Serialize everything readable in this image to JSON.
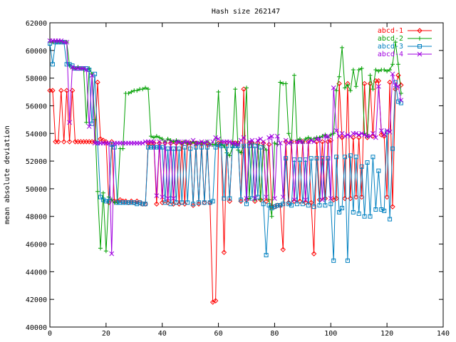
{
  "chart_data": {
    "type": "line",
    "title": "Hash size 262147",
    "xlabel": "",
    "ylabel": "mean absolute deviation",
    "xlim": [
      0,
      140
    ],
    "ylim": [
      40000,
      62000
    ],
    "xticks": [
      0,
      20,
      40,
      60,
      80,
      100,
      120,
      140
    ],
    "yticks": [
      40000,
      42000,
      44000,
      46000,
      48000,
      50000,
      52000,
      54000,
      56000,
      58000,
      60000,
      62000
    ],
    "xtick_labels": [
      "0",
      "20",
      "40",
      "60",
      "80",
      "100",
      "120",
      "140"
    ],
    "ytick_labels": [
      "40000",
      "42000",
      "44000",
      "46000",
      "48000",
      "50000",
      "52000",
      "54000",
      "56000",
      "58000",
      "60000",
      "62000"
    ],
    "grid": false,
    "legend_position": "top-right",
    "series": [
      {
        "name": "abcd-1",
        "color": "#ff0000",
        "marker": "diamond",
        "x": [
          0,
          1,
          2,
          3,
          4,
          5,
          6,
          7,
          8,
          9,
          10,
          11,
          12,
          13,
          14,
          15,
          16,
          17,
          18,
          19,
          20,
          21,
          22,
          23,
          24,
          25,
          26,
          27,
          28,
          29,
          30,
          31,
          32,
          33,
          34,
          35,
          36,
          37,
          38,
          39,
          40,
          41,
          42,
          43,
          44,
          45,
          46,
          47,
          48,
          49,
          50,
          51,
          52,
          53,
          54,
          55,
          56,
          57,
          58,
          59,
          60,
          61,
          62,
          63,
          64,
          65,
          66,
          67,
          68,
          69,
          70,
          71,
          72,
          73,
          74,
          75,
          76,
          77,
          78,
          79,
          80,
          81,
          82,
          83,
          84,
          85,
          86,
          87,
          88,
          89,
          90,
          91,
          92,
          93,
          94,
          95,
          96,
          97,
          98,
          99,
          100,
          101,
          102,
          103,
          104,
          105,
          106,
          107,
          108,
          109,
          110,
          111,
          112,
          113,
          114,
          115,
          116,
          117,
          118,
          119,
          120,
          121,
          122,
          123,
          124,
          125
        ],
        "y": [
          57100,
          57100,
          53400,
          53400,
          57100,
          53400,
          57100,
          53400,
          57100,
          53400,
          53400,
          53400,
          53400,
          53400,
          53400,
          53400,
          53400,
          57700,
          53600,
          53500,
          53400,
          49000,
          53400,
          49100,
          49100,
          49200,
          49100,
          49100,
          49000,
          49100,
          49000,
          49100,
          49000,
          48900,
          48900,
          53300,
          53300,
          53300,
          48900,
          53300,
          49000,
          53300,
          49000,
          53300,
          48900,
          53300,
          48900,
          53300,
          48900,
          53300,
          53300,
          48800,
          53300,
          48900,
          53300,
          49000,
          53300,
          49000,
          41800,
          41900,
          53300,
          53300,
          45400,
          53300,
          49100,
          53300,
          53300,
          53300,
          49100,
          57200,
          49200,
          53300,
          53300,
          49100,
          53300,
          49200,
          53300,
          49100,
          53200,
          48700,
          48700,
          48800,
          48800,
          45600,
          53400,
          49000,
          53400,
          49100,
          53400,
          49100,
          53400,
          49000,
          53400,
          49000,
          45300,
          53400,
          49200,
          53400,
          49300,
          53400,
          53500,
          49200,
          49300,
          57600,
          53700,
          49300,
          57600,
          49300,
          53700,
          49400,
          53700,
          49400,
          57600,
          53700,
          57600,
          53800,
          57800,
          57800,
          53900,
          53800,
          49400,
          57700,
          48700,
          57200,
          58200,
          57500
        ]
      },
      {
        "name": "abcd-2",
        "color": "#00a000",
        "marker": "plus",
        "x": [
          0,
          1,
          2,
          3,
          4,
          5,
          6,
          7,
          8,
          9,
          10,
          11,
          12,
          13,
          14,
          15,
          16,
          17,
          18,
          19,
          20,
          21,
          22,
          23,
          24,
          25,
          26,
          27,
          28,
          29,
          30,
          31,
          32,
          33,
          34,
          35,
          36,
          37,
          38,
          39,
          40,
          41,
          42,
          43,
          44,
          45,
          46,
          47,
          48,
          49,
          50,
          51,
          52,
          53,
          54,
          55,
          56,
          57,
          58,
          59,
          60,
          61,
          62,
          63,
          64,
          65,
          66,
          67,
          68,
          69,
          70,
          71,
          72,
          73,
          74,
          75,
          76,
          77,
          78,
          79,
          80,
          81,
          82,
          83,
          84,
          85,
          86,
          87,
          88,
          89,
          90,
          91,
          92,
          93,
          94,
          95,
          96,
          97,
          98,
          99,
          100,
          101,
          102,
          103,
          104,
          105,
          106,
          107,
          108,
          109,
          110,
          111,
          112,
          113,
          114,
          115,
          116,
          117,
          118,
          119,
          120,
          121,
          122,
          123,
          124,
          125
        ],
        "y": [
          60600,
          60600,
          60600,
          60600,
          60600,
          60600,
          60600,
          58900,
          58700,
          58700,
          58800,
          58700,
          58700,
          54800,
          58700,
          58300,
          55000,
          49800,
          45700,
          49700,
          45500,
          49400,
          49200,
          49000,
          49000,
          52900,
          52900,
          56900,
          56900,
          57000,
          57100,
          57100,
          57200,
          57200,
          57300,
          57200,
          53800,
          53700,
          53800,
          53700,
          53600,
          53400,
          53600,
          53500,
          53400,
          53500,
          53400,
          53300,
          53400,
          53300,
          53300,
          53400,
          53300,
          53300,
          53300,
          53300,
          53400,
          53200,
          53200,
          53200,
          57000,
          53200,
          53100,
          52600,
          52400,
          53000,
          57200,
          52800,
          52600,
          53100,
          57300,
          49300,
          53300,
          49200,
          53200,
          49200,
          53100,
          52800,
          49200,
          48000,
          53300,
          53200,
          57700,
          57600,
          57600,
          54000,
          53300,
          58200,
          53500,
          53600,
          53300,
          53600,
          53700,
          53600,
          53600,
          53700,
          53700,
          53800,
          53900,
          53700,
          53900,
          54000,
          57100,
          58100,
          60200,
          57300,
          57500,
          57100,
          58600,
          57400,
          58600,
          58700,
          54000,
          53800,
          58200,
          57200,
          58600,
          58500,
          58600,
          58600,
          58500,
          58600,
          59000,
          60600,
          59000,
          56900
        ]
      },
      {
        "name": "abcd-3",
        "color": "#0080c0",
        "marker": "square",
        "x": [
          0,
          1,
          2,
          3,
          4,
          5,
          6,
          7,
          8,
          9,
          10,
          11,
          12,
          13,
          14,
          15,
          16,
          17,
          18,
          19,
          20,
          21,
          22,
          23,
          24,
          25,
          26,
          27,
          28,
          29,
          30,
          31,
          32,
          33,
          34,
          35,
          36,
          37,
          38,
          39,
          40,
          41,
          42,
          43,
          44,
          45,
          46,
          47,
          48,
          49,
          50,
          51,
          52,
          53,
          54,
          55,
          56,
          57,
          58,
          59,
          60,
          61,
          62,
          63,
          64,
          65,
          66,
          67,
          68,
          69,
          70,
          71,
          72,
          73,
          74,
          75,
          76,
          77,
          78,
          79,
          80,
          81,
          82,
          83,
          84,
          85,
          86,
          87,
          88,
          89,
          90,
          91,
          92,
          93,
          94,
          95,
          96,
          97,
          98,
          99,
          100,
          101,
          102,
          103,
          104,
          105,
          106,
          107,
          108,
          109,
          110,
          111,
          112,
          113,
          114,
          115,
          116,
          117,
          118,
          119,
          120,
          121,
          122,
          123,
          124,
          125
        ],
        "y": [
          60500,
          59000,
          60600,
          60600,
          60600,
          60600,
          59000,
          59000,
          58900,
          58700,
          58700,
          58700,
          58700,
          58700,
          58600,
          54700,
          58300,
          53300,
          49400,
          49200,
          49100,
          49100,
          53200,
          53000,
          49000,
          49000,
          49000,
          49000,
          49000,
          49000,
          49000,
          48900,
          49000,
          48900,
          48900,
          53000,
          53000,
          53000,
          53000,
          53000,
          53000,
          49000,
          52900,
          48900,
          52900,
          49000,
          52900,
          49000,
          53000,
          49000,
          52900,
          48900,
          53000,
          49000,
          53000,
          49000,
          53000,
          49000,
          49100,
          53000,
          53200,
          53100,
          49300,
          53100,
          49300,
          53100,
          53100,
          53100,
          49200,
          53100,
          48900,
          53100,
          49300,
          53100,
          49400,
          53000,
          48900,
          45200,
          48800,
          48600,
          48700,
          48800,
          48800,
          48900,
          52200,
          48900,
          48800,
          52100,
          48900,
          52100,
          48900,
          52100,
          48800,
          52200,
          48700,
          52200,
          48800,
          52200,
          48800,
          52200,
          48900,
          44800,
          52300,
          48300,
          48600,
          52300,
          44800,
          52400,
          48300,
          52300,
          48200,
          51600,
          48000,
          51900,
          48000,
          52300,
          48500,
          51300,
          48500,
          48400,
          54100,
          47800,
          52900,
          57700,
          56300,
          56200
        ]
      },
      {
        "name": "abcd-4",
        "color": "#a000e0",
        "marker": "cross",
        "x": [
          0,
          1,
          2,
          3,
          4,
          5,
          6,
          7,
          8,
          9,
          10,
          11,
          12,
          13,
          14,
          15,
          16,
          17,
          18,
          19,
          20,
          21,
          22,
          23,
          24,
          25,
          26,
          27,
          28,
          29,
          30,
          31,
          32,
          33,
          34,
          35,
          36,
          37,
          38,
          39,
          40,
          41,
          42,
          43,
          44,
          45,
          46,
          47,
          48,
          49,
          50,
          51,
          52,
          53,
          54,
          55,
          56,
          57,
          58,
          59,
          60,
          61,
          62,
          63,
          64,
          65,
          66,
          67,
          68,
          69,
          70,
          71,
          72,
          73,
          74,
          75,
          76,
          77,
          78,
          79,
          80,
          81,
          82,
          83,
          84,
          85,
          86,
          87,
          88,
          89,
          90,
          91,
          92,
          93,
          94,
          95,
          96,
          97,
          98,
          99,
          100,
          101,
          102,
          103,
          104,
          105,
          106,
          107,
          108,
          109,
          110,
          111,
          112,
          113,
          114,
          115,
          116,
          117,
          118,
          119,
          120,
          121,
          122,
          123,
          124,
          125
        ],
        "y": [
          60700,
          60700,
          60700,
          60700,
          60700,
          60600,
          60600,
          54800,
          58800,
          58700,
          58700,
          58700,
          58700,
          58600,
          54500,
          58200,
          53300,
          53300,
          53300,
          53300,
          53300,
          53300,
          45300,
          53300,
          53300,
          53300,
          53300,
          53300,
          53300,
          53300,
          53300,
          53300,
          53300,
          53300,
          53400,
          53400,
          53400,
          53400,
          49500,
          53400,
          49400,
          53400,
          49300,
          53400,
          49300,
          53400,
          53400,
          53300,
          53400,
          53400,
          53300,
          53500,
          53300,
          53300,
          53400,
          53300,
          53400,
          53200,
          53400,
          53700,
          53600,
          53400,
          53400,
          53400,
          53400,
          53300,
          53300,
          53200,
          53500,
          53700,
          49300,
          53400,
          53500,
          49300,
          53500,
          53600,
          53400,
          49400,
          53700,
          53800,
          49300,
          53800,
          53300,
          49400,
          53500,
          53300,
          53400,
          49200,
          53400,
          53400,
          53400,
          49200,
          53400,
          53500,
          53400,
          53600,
          53600,
          49200,
          53800,
          53800,
          49300,
          57300,
          54200,
          53800,
          54000,
          53800,
          53900,
          53800,
          54000,
          54000,
          53900,
          54000,
          53900,
          53800,
          53800,
          54000,
          53700,
          57400,
          54200,
          53900,
          54200,
          54100,
          58300,
          57500,
          57400,
          56400
        ]
      }
    ]
  }
}
